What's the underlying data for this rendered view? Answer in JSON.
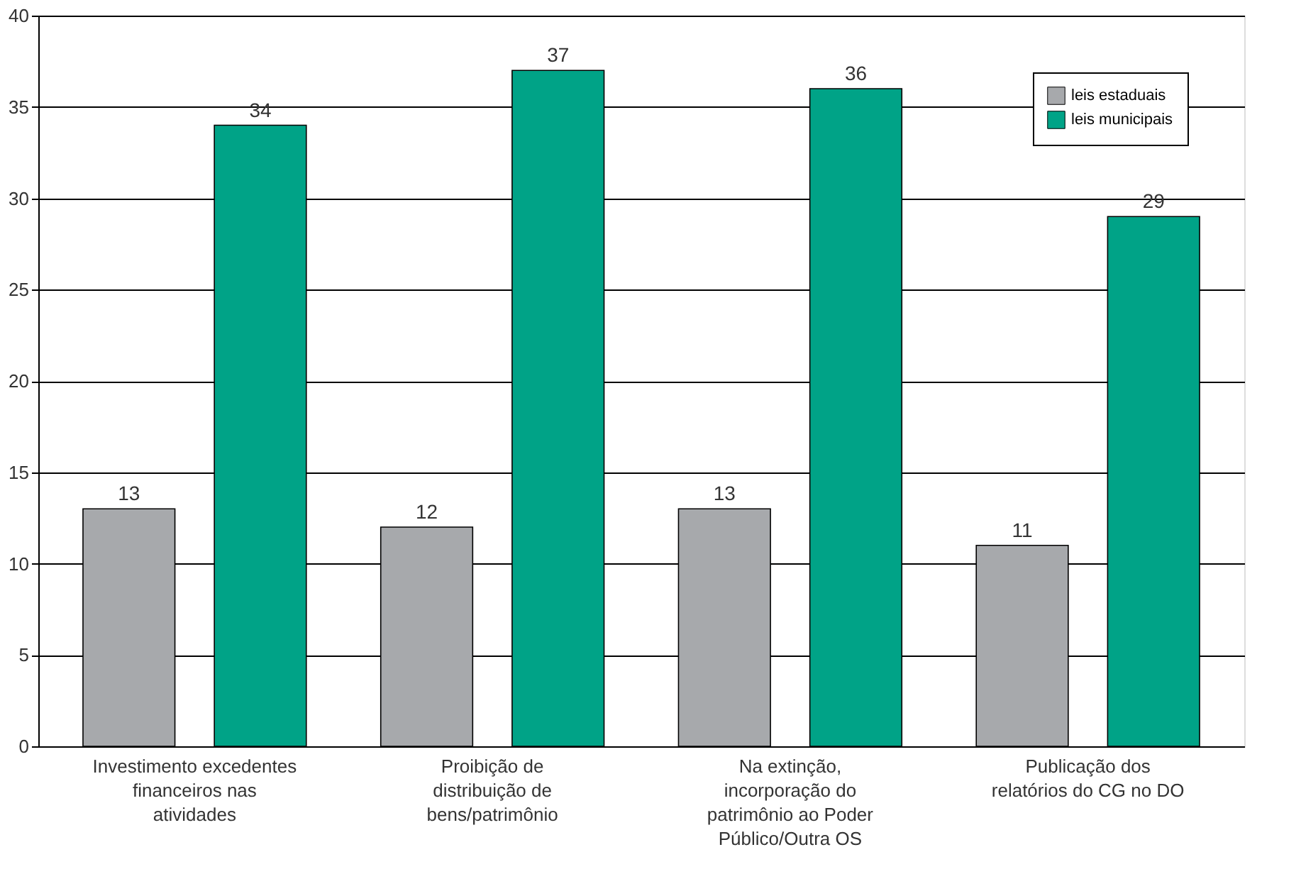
{
  "chart_data": {
    "type": "bar",
    "categories": [
      "Investimento excedentes financeiros nas atividades",
      "Proibição de distribuição de bens/patrimônio",
      "Na extinção, incorporação do patrimônio ao Poder Público/Outra OS",
      "Publicação dos relatórios do CG no DO"
    ],
    "series": [
      {
        "name": "leis estaduais",
        "color": "#a7a9ac",
        "values": [
          13,
          12,
          13,
          11
        ]
      },
      {
        "name": "leis municipais",
        "color": "#00a387",
        "values": [
          34,
          37,
          36,
          29
        ]
      }
    ],
    "ylim": [
      0,
      40
    ],
    "yticks": [
      0,
      5,
      10,
      15,
      20,
      25,
      30,
      35,
      40
    ],
    "grid": "y",
    "legend": "top right",
    "data_labels": true
  }
}
